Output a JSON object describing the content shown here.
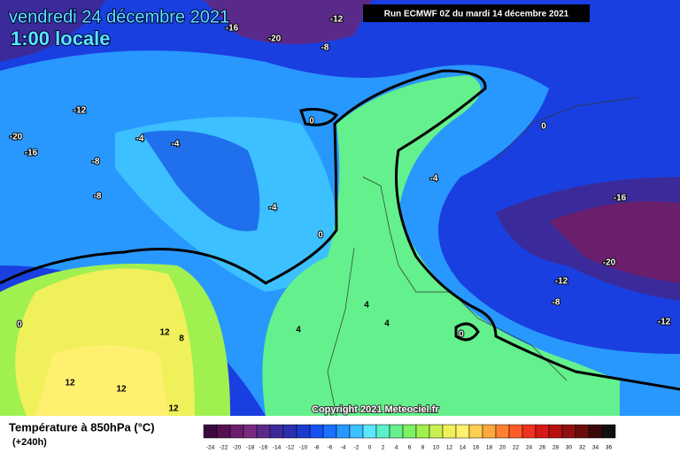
{
  "header": {
    "date": "vendredi 24 décembre 2021",
    "time": "1:00 locale",
    "run": "Run ECMWF 0Z du mardi 14 décembre 2021"
  },
  "copyright": "Copyright 2021 Meteociel.fr",
  "legend": {
    "title": "Température à 850hPa (°C)",
    "subtitle": "(+240h)",
    "ticks": [
      -24,
      -22,
      -20,
      -18,
      -16,
      -14,
      -12,
      -10,
      -8,
      -6,
      -4,
      -2,
      0,
      2,
      4,
      6,
      8,
      10,
      12,
      14,
      16,
      18,
      20,
      22,
      24,
      26,
      28,
      30,
      32,
      34,
      36
    ],
    "colors": [
      "#3a0a3e",
      "#55104f",
      "#6b1e6b",
      "#7a2a80",
      "#5a2a8a",
      "#3b2b9a",
      "#2a30b0",
      "#1b3bd0",
      "#1650f0",
      "#1a70ff",
      "#2898ff",
      "#3cc0ff",
      "#5ae6ff",
      "#5af0c8",
      "#64f08c",
      "#7ef064",
      "#a0f050",
      "#c8f050",
      "#f0f05a",
      "#fff070",
      "#ffd050",
      "#ffa83c",
      "#ff8030",
      "#ff5a28",
      "#f03020",
      "#d81818",
      "#b81010",
      "#901010",
      "#6a0c0c",
      "#3c0808",
      "#101010"
    ]
  },
  "contour_labels": [
    -20,
    -12,
    -16,
    -8,
    -12,
    -20,
    -16,
    -4,
    -4,
    -8,
    0,
    -8,
    -4,
    0,
    -4,
    0,
    -16,
    -20,
    -12,
    -8,
    -12,
    0,
    12,
    8,
    4,
    4,
    4,
    0,
    12,
    12,
    12
  ]
}
